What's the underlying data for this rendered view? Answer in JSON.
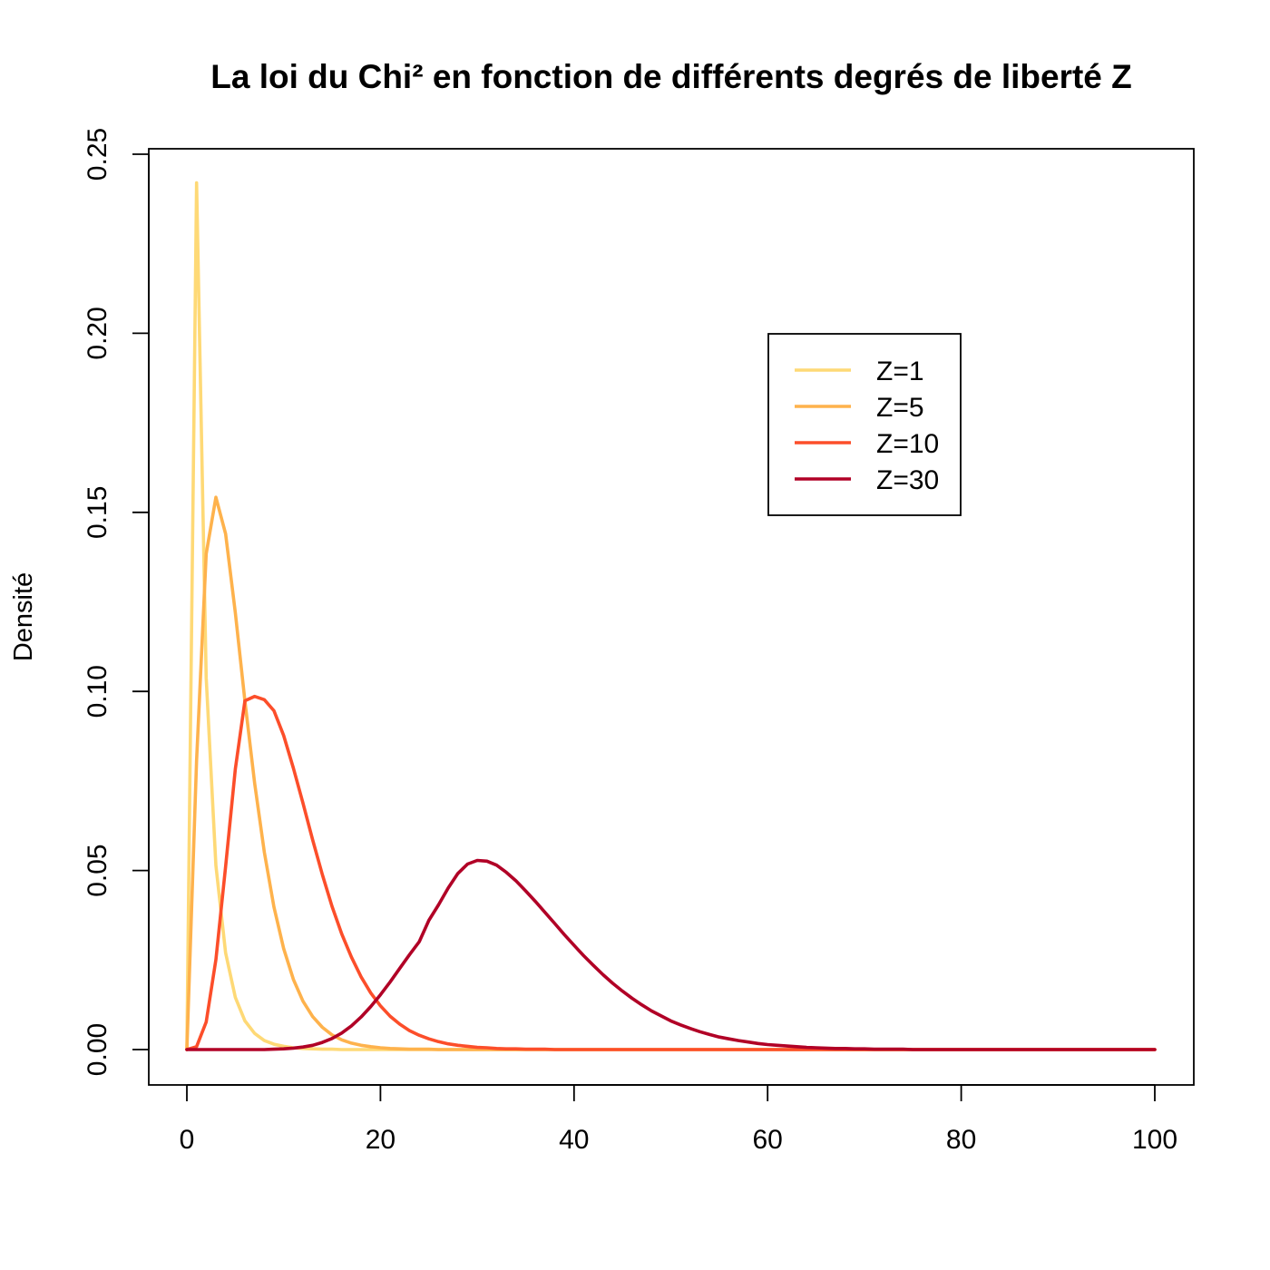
{
  "chart_data": {
    "type": "line",
    "title": "La loi du Chi² en fonction de différents degrés de liberté Z",
    "xlabel": "",
    "ylabel": "Densité",
    "xlim": [
      0,
      100
    ],
    "ylim": [
      0,
      0.25
    ],
    "x_ticks": [
      0,
      20,
      40,
      60,
      80,
      100
    ],
    "x_tick_labels": [
      "0",
      "20",
      "40",
      "60",
      "80",
      "100"
    ],
    "y_ticks": [
      0,
      0.05,
      0.1,
      0.15,
      0.2,
      0.25
    ],
    "y_tick_labels": [
      "0.00",
      "0.05",
      "0.10",
      "0.15",
      "0.20",
      "0.25"
    ],
    "grid": false,
    "legend_position": "top-right",
    "x": [
      0,
      1,
      2,
      3,
      4,
      5,
      6,
      7,
      8,
      9,
      10,
      11,
      12,
      13,
      14,
      15,
      16,
      17,
      18,
      19,
      20,
      21,
      22,
      23,
      24,
      25,
      26,
      27,
      28,
      29,
      30,
      31,
      32,
      33,
      34,
      35,
      36,
      37,
      38,
      39,
      40,
      41,
      42,
      43,
      44,
      45,
      46,
      47,
      48,
      49,
      50,
      51,
      52,
      53,
      54,
      55,
      56,
      57,
      58,
      59,
      60,
      61,
      62,
      63,
      64,
      65,
      66,
      67,
      68,
      69,
      70,
      71,
      72,
      73,
      74,
      75,
      76,
      77,
      78,
      79,
      80,
      81,
      82,
      83,
      84,
      85,
      86,
      87,
      88,
      89,
      90,
      91,
      92,
      93,
      94,
      95,
      96,
      97,
      98,
      99,
      100
    ],
    "series": [
      {
        "name": "Z=1",
        "color": "#FED976",
        "values": [
          0,
          0.242,
          0.1038,
          0.0514,
          0.027,
          0.0146,
          0.008,
          0.0045,
          0.0025,
          0.0015,
          0.0009,
          0.0005,
          0.0003,
          0.0002,
          0.0001,
          0.0001,
          0,
          0,
          0,
          0,
          0,
          0,
          0,
          0,
          0,
          0,
          0,
          0,
          0,
          0,
          0,
          0,
          0,
          0,
          0,
          0,
          0,
          0,
          0,
          0,
          0,
          0,
          0,
          0,
          0,
          0,
          0,
          0,
          0,
          0,
          0,
          0,
          0,
          0,
          0,
          0,
          0,
          0,
          0,
          0,
          0,
          0,
          0,
          0,
          0,
          0,
          0,
          0,
          0,
          0,
          0,
          0,
          0,
          0,
          0,
          0,
          0,
          0,
          0,
          0,
          0,
          0,
          0,
          0,
          0,
          0,
          0,
          0,
          0,
          0,
          0,
          0,
          0,
          0,
          0,
          0,
          0,
          0,
          0,
          0,
          0
        ]
      },
      {
        "name": "Z=5",
        "color": "#FEB24C",
        "values": [
          0,
          0.0807,
          0.1384,
          0.1542,
          0.144,
          0.122,
          0.0973,
          0.0744,
          0.0551,
          0.0398,
          0.0282,
          0.0196,
          0.0135,
          0.0092,
          0.0062,
          0.0041,
          0.0027,
          0.0018,
          0.0012,
          0.0008,
          0.0005,
          0.0003,
          0.0002,
          0.0001,
          0.0001,
          0.0001,
          0,
          0,
          0,
          0,
          0,
          0,
          0,
          0,
          0,
          0,
          0,
          0,
          0,
          0,
          0,
          0,
          0,
          0,
          0,
          0,
          0,
          0,
          0,
          0,
          0,
          0,
          0,
          0,
          0,
          0,
          0,
          0,
          0,
          0,
          0,
          0,
          0,
          0,
          0,
          0,
          0,
          0,
          0,
          0,
          0,
          0,
          0,
          0,
          0,
          0,
          0,
          0,
          0,
          0,
          0,
          0,
          0,
          0,
          0,
          0,
          0,
          0,
          0,
          0,
          0,
          0,
          0,
          0,
          0,
          0,
          0,
          0,
          0,
          0,
          0
        ]
      },
      {
        "name": "Z=10",
        "color": "#FC4E2A",
        "values": [
          0,
          0.0008,
          0.0077,
          0.0251,
          0.0511,
          0.0783,
          0.0974,
          0.0986,
          0.0977,
          0.0946,
          0.0877,
          0.0786,
          0.0688,
          0.0585,
          0.0488,
          0.04,
          0.0323,
          0.0258,
          0.0203,
          0.0158,
          0.0122,
          0.0093,
          0.0071,
          0.0053,
          0.004,
          0.003,
          0.0022,
          0.0016,
          0.0012,
          0.0009,
          0.0006,
          0.0005,
          0.0003,
          0.0002,
          0.0002,
          0.0001,
          0.0001,
          0.0001,
          0,
          0,
          0,
          0,
          0,
          0,
          0,
          0,
          0,
          0,
          0,
          0,
          0,
          0,
          0,
          0,
          0,
          0,
          0,
          0,
          0,
          0,
          0,
          0,
          0,
          0,
          0,
          0,
          0,
          0,
          0,
          0,
          0,
          0,
          0,
          0,
          0,
          0,
          0,
          0,
          0,
          0,
          0,
          0,
          0,
          0,
          0,
          0,
          0,
          0,
          0,
          0,
          0,
          0,
          0,
          0,
          0,
          0,
          0,
          0,
          0,
          0,
          0
        ]
      },
      {
        "name": "Z=30",
        "color": "#B10026",
        "values": [
          0,
          0,
          0,
          0,
          0,
          0,
          0,
          0,
          0,
          0.0001,
          0.0002,
          0.0004,
          0.0007,
          0.0012,
          0.002,
          0.0031,
          0.0046,
          0.0066,
          0.0091,
          0.012,
          0.0153,
          0.0189,
          0.0227,
          0.0265,
          0.0301,
          0.0361,
          0.0404,
          0.0451,
          0.0492,
          0.0518,
          0.0528,
          0.0526,
          0.0515,
          0.0495,
          0.0471,
          0.0443,
          0.0414,
          0.0383,
          0.0352,
          0.0321,
          0.0291,
          0.0262,
          0.0235,
          0.0209,
          0.0185,
          0.0163,
          0.0143,
          0.0125,
          0.0108,
          0.0094,
          0.008,
          0.0069,
          0.0059,
          0.005,
          0.0042,
          0.0035,
          0.003,
          0.0025,
          0.0021,
          0.0017,
          0.0014,
          0.0012,
          0.001,
          0.0008,
          0.0006,
          0.0005,
          0.0004,
          0.0003,
          0.0003,
          0.0002,
          0.0002,
          0.0001,
          0.0001,
          0.0001,
          0.0001,
          0,
          0,
          0,
          0,
          0,
          0,
          0,
          0,
          0,
          0,
          0,
          0,
          0,
          0,
          0,
          0,
          0,
          0,
          0,
          0,
          0,
          0,
          0,
          0,
          0,
          0
        ]
      }
    ]
  }
}
